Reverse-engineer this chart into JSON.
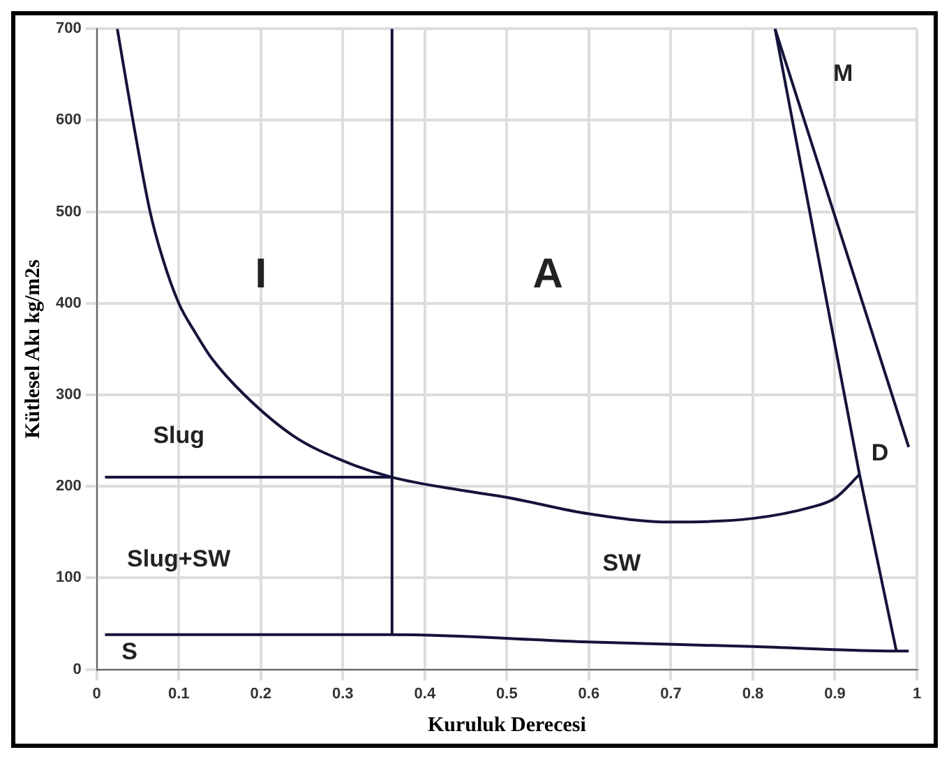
{
  "chart_data": {
    "type": "line",
    "xlabel": "Kuruluk Derecesi",
    "ylabel": "Kütlesel Akı kg/m2s",
    "xlim": [
      0,
      1
    ],
    "ylim": [
      0,
      700
    ],
    "xticks": [
      0,
      0.1,
      0.2,
      0.3,
      0.4,
      0.5,
      0.6,
      0.7,
      0.8,
      0.9,
      1
    ],
    "yticks": [
      0,
      100,
      200,
      300,
      400,
      500,
      600,
      700
    ],
    "grid": true,
    "legend": false,
    "marker": "none",
    "line_style": "solid",
    "series": [
      {
        "color": "#14143a",
        "x": [
          0.025,
          0.044,
          0.065,
          0.08,
          0.1,
          0.12,
          0.14,
          0.18,
          0.24,
          0.3,
          0.36,
          0.45,
          0.5,
          0.6,
          0.7,
          0.8,
          0.87,
          0.9,
          0.93
        ],
        "values": [
          700,
          600,
          500,
          450,
          400,
          368,
          340,
          300,
          255,
          228,
          210,
          195,
          188,
          170,
          161,
          165,
          177,
          187,
          213
        ]
      },
      {
        "color": "#14143a",
        "x": [
          0.36,
          0.36
        ],
        "values": [
          38,
          700
        ]
      },
      {
        "color": "#14143a",
        "x": [
          0.01,
          0.36
        ],
        "values": [
          210,
          210
        ]
      },
      {
        "color": "#14143a",
        "x": [
          0.01,
          0.36,
          0.6,
          0.8,
          0.975,
          0.99
        ],
        "values": [
          38,
          38,
          30,
          25,
          20,
          20
        ]
      },
      {
        "color": "#14143a",
        "x": [
          0.827,
          0.93,
          0.975
        ],
        "values": [
          700,
          213,
          20
        ]
      },
      {
        "color": "#14143a",
        "x": [
          0.827,
          0.99
        ],
        "values": [
          700,
          243
        ]
      }
    ],
    "annotations": [
      "I",
      "A",
      "M",
      "Slug",
      "Slug+SW",
      "SW",
      "S",
      "D"
    ]
  }
}
